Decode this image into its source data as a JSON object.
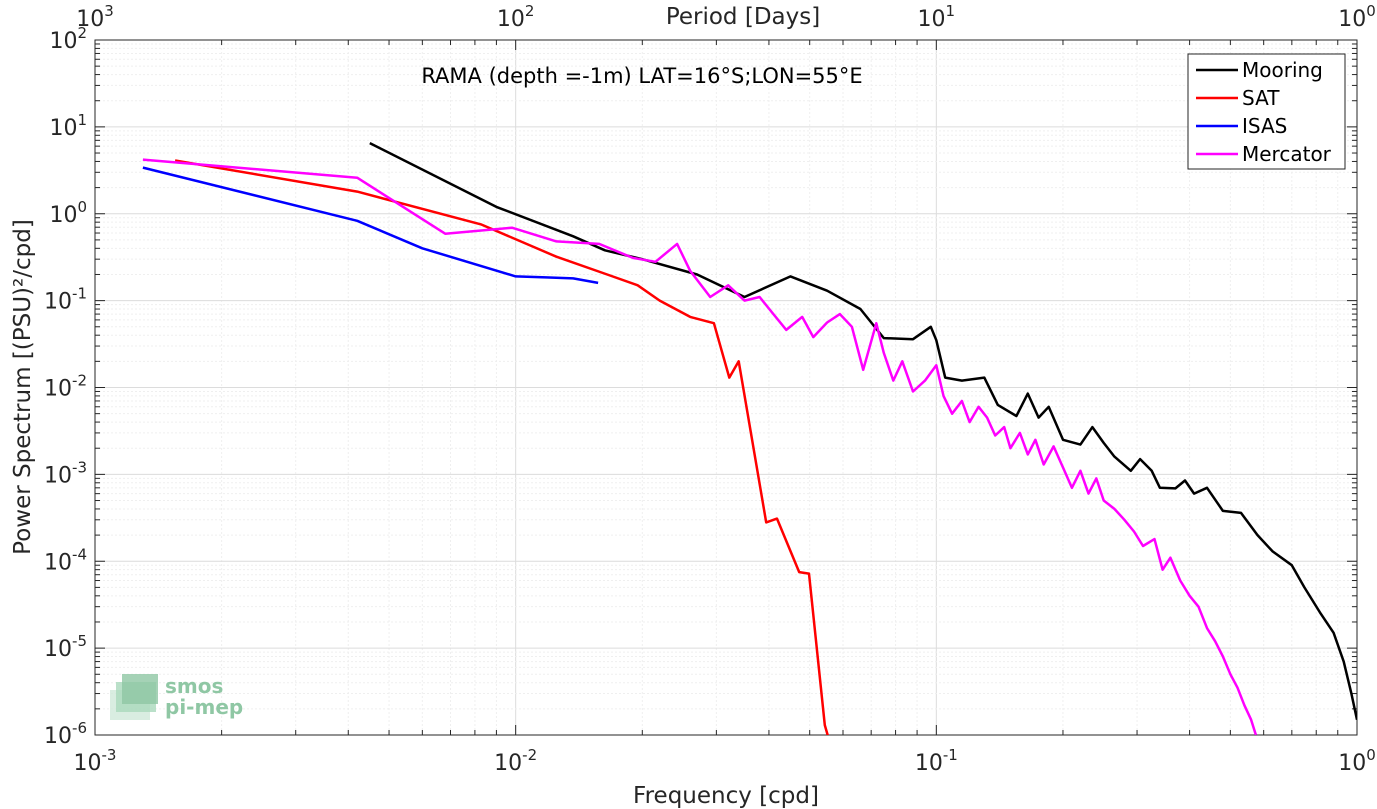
{
  "chart_data": {
    "type": "line",
    "title": "RAMA (depth =-1m) LAT=16°S;LON=55°E",
    "xlabel": "Frequency [cpd]",
    "ylabel": "Power Spectrum [(PSU)²/cpd]",
    "top_xlabel": "Period [Days]",
    "xscale": "log",
    "yscale": "log",
    "xlim": [
      0.001,
      1
    ],
    "ylim": [
      1e-06,
      100
    ],
    "grid": true,
    "minor_grid": true,
    "legend_position": "top-right",
    "x_ticks": [
      {
        "value": 0.001,
        "base": "10",
        "exp": "-3"
      },
      {
        "value": 0.01,
        "base": "10",
        "exp": "-2"
      },
      {
        "value": 0.1,
        "base": "10",
        "exp": "-1"
      },
      {
        "value": 1,
        "base": "10",
        "exp": "0"
      }
    ],
    "y_ticks": [
      {
        "value": 1e-06,
        "base": "10",
        "exp": "-6"
      },
      {
        "value": 1e-05,
        "base": "10",
        "exp": "-5"
      },
      {
        "value": 0.0001,
        "base": "10",
        "exp": "-4"
      },
      {
        "value": 0.001,
        "base": "10",
        "exp": "-3"
      },
      {
        "value": 0.01,
        "base": "10",
        "exp": "-2"
      },
      {
        "value": 0.1,
        "base": "10",
        "exp": "-1"
      },
      {
        "value": 1,
        "base": "10",
        "exp": "0"
      },
      {
        "value": 10,
        "base": "10",
        "exp": "1"
      },
      {
        "value": 100,
        "base": "10",
        "exp": "2"
      }
    ],
    "top_x_ticks": [
      {
        "period_days": 1000,
        "base": "10",
        "exp": "3"
      },
      {
        "period_days": 100,
        "base": "10",
        "exp": "2"
      },
      {
        "period_days": 10,
        "base": "10",
        "exp": "1"
      },
      {
        "period_days": 1,
        "base": "10",
        "exp": "0"
      }
    ],
    "series": [
      {
        "name": "Mooring",
        "color": "#000000",
        "points": [
          [
            0.0045,
            6.5
          ],
          [
            0.009,
            1.2
          ],
          [
            0.0137,
            0.55
          ],
          [
            0.0163,
            0.38
          ],
          [
            0.02,
            0.3
          ],
          [
            0.027,
            0.2
          ],
          [
            0.035,
            0.11
          ],
          [
            0.045,
            0.19
          ],
          [
            0.055,
            0.13
          ],
          [
            0.066,
            0.08
          ],
          [
            0.075,
            0.037
          ],
          [
            0.088,
            0.036
          ],
          [
            0.097,
            0.05
          ],
          [
            0.1,
            0.035
          ],
          [
            0.105,
            0.013
          ],
          [
            0.115,
            0.012
          ],
          [
            0.13,
            0.013
          ],
          [
            0.14,
            0.0063
          ],
          [
            0.155,
            0.0047
          ],
          [
            0.165,
            0.0085
          ],
          [
            0.175,
            0.0045
          ],
          [
            0.185,
            0.006
          ],
          [
            0.2,
            0.0025
          ],
          [
            0.22,
            0.0022
          ],
          [
            0.235,
            0.0035
          ],
          [
            0.25,
            0.0023
          ],
          [
            0.265,
            0.0016
          ],
          [
            0.29,
            0.0011
          ],
          [
            0.305,
            0.0015
          ],
          [
            0.325,
            0.0011
          ],
          [
            0.34,
            0.0007
          ],
          [
            0.37,
            0.00069
          ],
          [
            0.39,
            0.00085
          ],
          [
            0.41,
            0.0006
          ],
          [
            0.44,
            0.0007
          ],
          [
            0.48,
            0.00038
          ],
          [
            0.53,
            0.00036
          ],
          [
            0.58,
            0.0002
          ],
          [
            0.63,
            0.00013
          ],
          [
            0.7,
            9e-05
          ],
          [
            0.75,
            5e-05
          ],
          [
            0.82,
            2.5e-05
          ],
          [
            0.88,
            1.5e-05
          ],
          [
            0.93,
            7e-06
          ],
          [
            0.97,
            3e-06
          ],
          [
            1.0,
            1.5e-06
          ]
        ]
      },
      {
        "name": "SAT",
        "color": "#ff0000",
        "points": [
          [
            0.00155,
            4.1
          ],
          [
            0.0042,
            1.8
          ],
          [
            0.0083,
            0.75
          ],
          [
            0.0125,
            0.32
          ],
          [
            0.0165,
            0.2
          ],
          [
            0.0195,
            0.15
          ],
          [
            0.022,
            0.1
          ],
          [
            0.026,
            0.065
          ],
          [
            0.0296,
            0.055
          ],
          [
            0.0322,
            0.013
          ],
          [
            0.0339,
            0.02
          ],
          [
            0.0394,
            0.00028
          ],
          [
            0.0418,
            0.00031
          ],
          [
            0.0472,
            7.5e-05
          ],
          [
            0.0498,
            7.2e-05
          ],
          [
            0.0543,
            1.3e-06
          ],
          [
            0.0555,
            9e-07
          ]
        ]
      },
      {
        "name": "ISAS",
        "color": "#0000ff",
        "points": [
          [
            0.0013,
            3.4
          ],
          [
            0.0042,
            0.83
          ],
          [
            0.006,
            0.4
          ],
          [
            0.01,
            0.19
          ],
          [
            0.0118,
            0.185
          ],
          [
            0.0137,
            0.18
          ],
          [
            0.0157,
            0.16
          ]
        ]
      },
      {
        "name": "Mercator",
        "color": "#ff00ff",
        "points": [
          [
            0.0013,
            4.2
          ],
          [
            0.0042,
            2.6
          ],
          [
            0.0068,
            0.59
          ],
          [
            0.0098,
            0.69
          ],
          [
            0.0125,
            0.48
          ],
          [
            0.0158,
            0.45
          ],
          [
            0.019,
            0.31
          ],
          [
            0.0215,
            0.28
          ],
          [
            0.0242,
            0.45
          ],
          [
            0.026,
            0.22
          ],
          [
            0.029,
            0.11
          ],
          [
            0.032,
            0.15
          ],
          [
            0.035,
            0.1
          ],
          [
            0.038,
            0.11
          ],
          [
            0.041,
            0.07
          ],
          [
            0.044,
            0.046
          ],
          [
            0.048,
            0.065
          ],
          [
            0.051,
            0.038
          ],
          [
            0.055,
            0.056
          ],
          [
            0.059,
            0.07
          ],
          [
            0.063,
            0.05
          ],
          [
            0.067,
            0.016
          ],
          [
            0.072,
            0.055
          ],
          [
            0.075,
            0.025
          ],
          [
            0.079,
            0.012
          ],
          [
            0.083,
            0.02
          ],
          [
            0.088,
            0.009
          ],
          [
            0.094,
            0.012
          ],
          [
            0.1,
            0.018
          ],
          [
            0.104,
            0.008
          ],
          [
            0.109,
            0.005
          ],
          [
            0.115,
            0.007
          ],
          [
            0.12,
            0.004
          ],
          [
            0.126,
            0.006
          ],
          [
            0.132,
            0.0045
          ],
          [
            0.138,
            0.0028
          ],
          [
            0.145,
            0.0035
          ],
          [
            0.15,
            0.002
          ],
          [
            0.158,
            0.003
          ],
          [
            0.165,
            0.0017
          ],
          [
            0.172,
            0.0025
          ],
          [
            0.18,
            0.0013
          ],
          [
            0.19,
            0.0021
          ],
          [
            0.2,
            0.0012
          ],
          [
            0.21,
            0.0007
          ],
          [
            0.22,
            0.0011
          ],
          [
            0.23,
            0.0006
          ],
          [
            0.24,
            0.0009
          ],
          [
            0.25,
            0.0005
          ],
          [
            0.265,
            0.0004
          ],
          [
            0.28,
            0.0003
          ],
          [
            0.295,
            0.00022
          ],
          [
            0.31,
            0.00015
          ],
          [
            0.33,
            0.00018
          ],
          [
            0.345,
            8e-05
          ],
          [
            0.36,
            0.00011
          ],
          [
            0.38,
            6e-05
          ],
          [
            0.4,
            4e-05
          ],
          [
            0.42,
            3e-05
          ],
          [
            0.44,
            1.7e-05
          ],
          [
            0.46,
            1.2e-05
          ],
          [
            0.48,
            8e-06
          ],
          [
            0.5,
            5e-06
          ],
          [
            0.52,
            3.5e-06
          ],
          [
            0.54,
            2.2e-06
          ],
          [
            0.56,
            1.5e-06
          ],
          [
            0.575,
            1e-06
          ]
        ]
      }
    ]
  },
  "watermark": {
    "line1": "smos",
    "line2": "pi-mep"
  }
}
